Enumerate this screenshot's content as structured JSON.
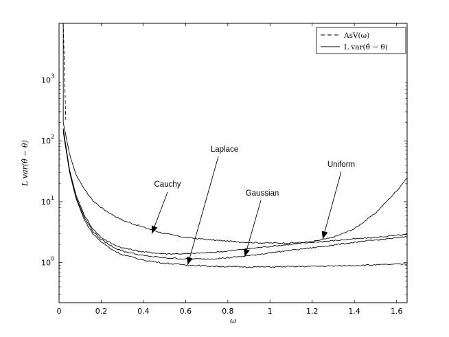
{
  "chart_data": {
    "type": "line",
    "xlabel": "ω",
    "ylabel": "L var(θ̂ − θ)",
    "xlim": [
      0,
      1.65
    ],
    "ylim": [
      0.22,
      8500
    ],
    "yscale": "log",
    "x_ticks": [
      0,
      0.2,
      0.4,
      0.6,
      0.8,
      1,
      1.2,
      1.4,
      1.6
    ],
    "x_tick_labels": [
      "0",
      "0.2",
      "0.4",
      "0.6",
      "0.8",
      "1",
      "1.2",
      "1.4",
      "1.6"
    ],
    "y_ticks": [
      1,
      10,
      100,
      1000
    ],
    "y_tick_labels": [
      {
        "base": "10",
        "exp": "0"
      },
      {
        "base": "10",
        "exp": "1"
      },
      {
        "base": "10",
        "exp": "2"
      },
      {
        "base": "10",
        "exp": "3"
      }
    ],
    "grid": false,
    "legend": {
      "placement": "top-right",
      "entries": [
        {
          "label": "AsV(ω)",
          "style": "dashed"
        },
        {
          "label": "L var(θ̂ − θ)",
          "style": "solid"
        }
      ]
    },
    "series": [
      {
        "name": "Cauchy",
        "x": [
          0.02,
          0.05,
          0.08,
          0.12,
          0.16,
          0.2,
          0.25,
          0.3,
          0.4,
          0.5,
          0.6,
          0.7,
          0.8,
          0.9,
          1.0,
          1.1,
          1.2,
          1.3,
          1.4,
          1.5,
          1.6,
          1.65
        ],
        "y": [
          200,
          60,
          28,
          16,
          10.5,
          8.0,
          6.2,
          5.0,
          3.8,
          3.0,
          2.6,
          2.4,
          2.25,
          2.15,
          2.1,
          2.1,
          2.2,
          2.6,
          3.6,
          6.5,
          15,
          25
        ]
      },
      {
        "name": "Uniform",
        "x": [
          0.02,
          0.05,
          0.08,
          0.12,
          0.16,
          0.2,
          0.25,
          0.3,
          0.4,
          0.5,
          0.6,
          0.7,
          0.8,
          0.9,
          1.0,
          1.1,
          1.2,
          1.3,
          1.4,
          1.5,
          1.6,
          1.65
        ],
        "y": [
          160,
          33,
          13,
          6,
          3.6,
          2.6,
          2.05,
          1.75,
          1.5,
          1.4,
          1.4,
          1.45,
          1.55,
          1.7,
          1.85,
          2.0,
          2.15,
          2.3,
          2.45,
          2.6,
          2.8,
          2.9
        ]
      },
      {
        "name": "Gaussian",
        "x": [
          0.02,
          0.05,
          0.08,
          0.12,
          0.16,
          0.2,
          0.25,
          0.3,
          0.4,
          0.5,
          0.6,
          0.7,
          0.8,
          0.9,
          1.0,
          1.1,
          1.2,
          1.3,
          1.4,
          1.5,
          1.6,
          1.65
        ],
        "y": [
          150,
          31,
          12,
          5.5,
          3.3,
          2.4,
          1.85,
          1.55,
          1.3,
          1.2,
          1.15,
          1.15,
          1.2,
          1.3,
          1.45,
          1.6,
          1.75,
          1.95,
          2.15,
          2.35,
          2.55,
          2.65
        ]
      },
      {
        "name": "Laplace",
        "x": [
          0.02,
          0.05,
          0.08,
          0.12,
          0.16,
          0.2,
          0.25,
          0.3,
          0.4,
          0.5,
          0.6,
          0.7,
          0.8,
          0.9,
          1.0,
          1.1,
          1.2,
          1.3,
          1.4,
          1.5,
          1.6,
          1.65
        ],
        "y": [
          140,
          30,
          11.5,
          5.0,
          3.0,
          2.2,
          1.65,
          1.35,
          1.1,
          0.98,
          0.92,
          0.88,
          0.86,
          0.85,
          0.85,
          0.86,
          0.87,
          0.88,
          0.9,
          0.92,
          0.94,
          0.95
        ]
      },
      {
        "name": "AsV(ω)",
        "style": "dashed",
        "x": [
          0.02,
          0.024,
          0.028,
          0.032
        ],
        "y": [
          8500,
          2500,
          700,
          220
        ]
      }
    ],
    "annotations": [
      {
        "text": "Cauchy",
        "target_x": 0.44,
        "target_y": 3.0
      },
      {
        "text": "Laplace",
        "target_x": 0.61,
        "target_y": 0.92
      },
      {
        "text": "Gaussian",
        "target_x": 0.88,
        "target_y": 1.25
      },
      {
        "text": "Uniform",
        "target_x": 1.25,
        "target_y": 2.45
      }
    ]
  }
}
